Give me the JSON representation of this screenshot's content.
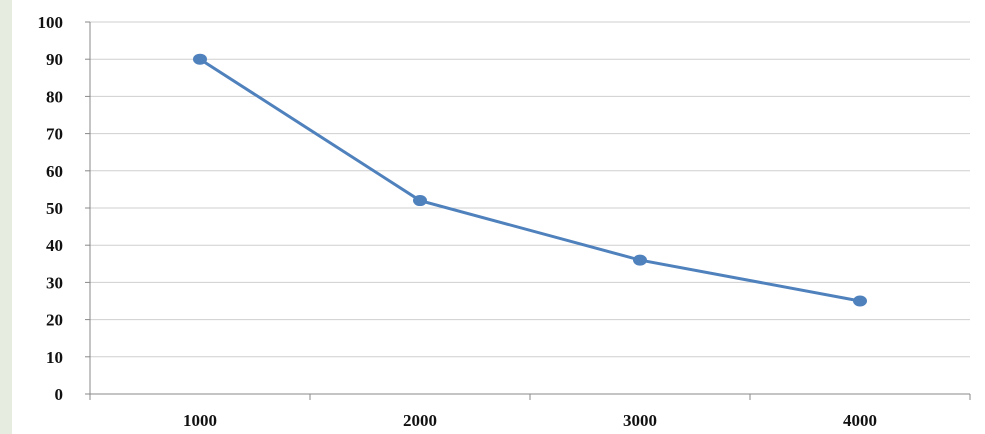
{
  "chart_data": {
    "type": "line",
    "title": "",
    "xlabel": "",
    "ylabel": "",
    "categories": [
      "1000",
      "2000",
      "3000",
      "4000"
    ],
    "series": [
      {
        "values": [
          90,
          52,
          36,
          25
        ]
      }
    ],
    "ylim": [
      0,
      100
    ],
    "yticks": [
      0,
      10,
      20,
      30,
      40,
      50,
      60,
      70,
      80,
      90,
      100
    ],
    "grid": true,
    "legend": "none",
    "colors": {
      "line": "#4f81bd",
      "grid": "#cfcfcf",
      "axis": "#888888"
    }
  }
}
